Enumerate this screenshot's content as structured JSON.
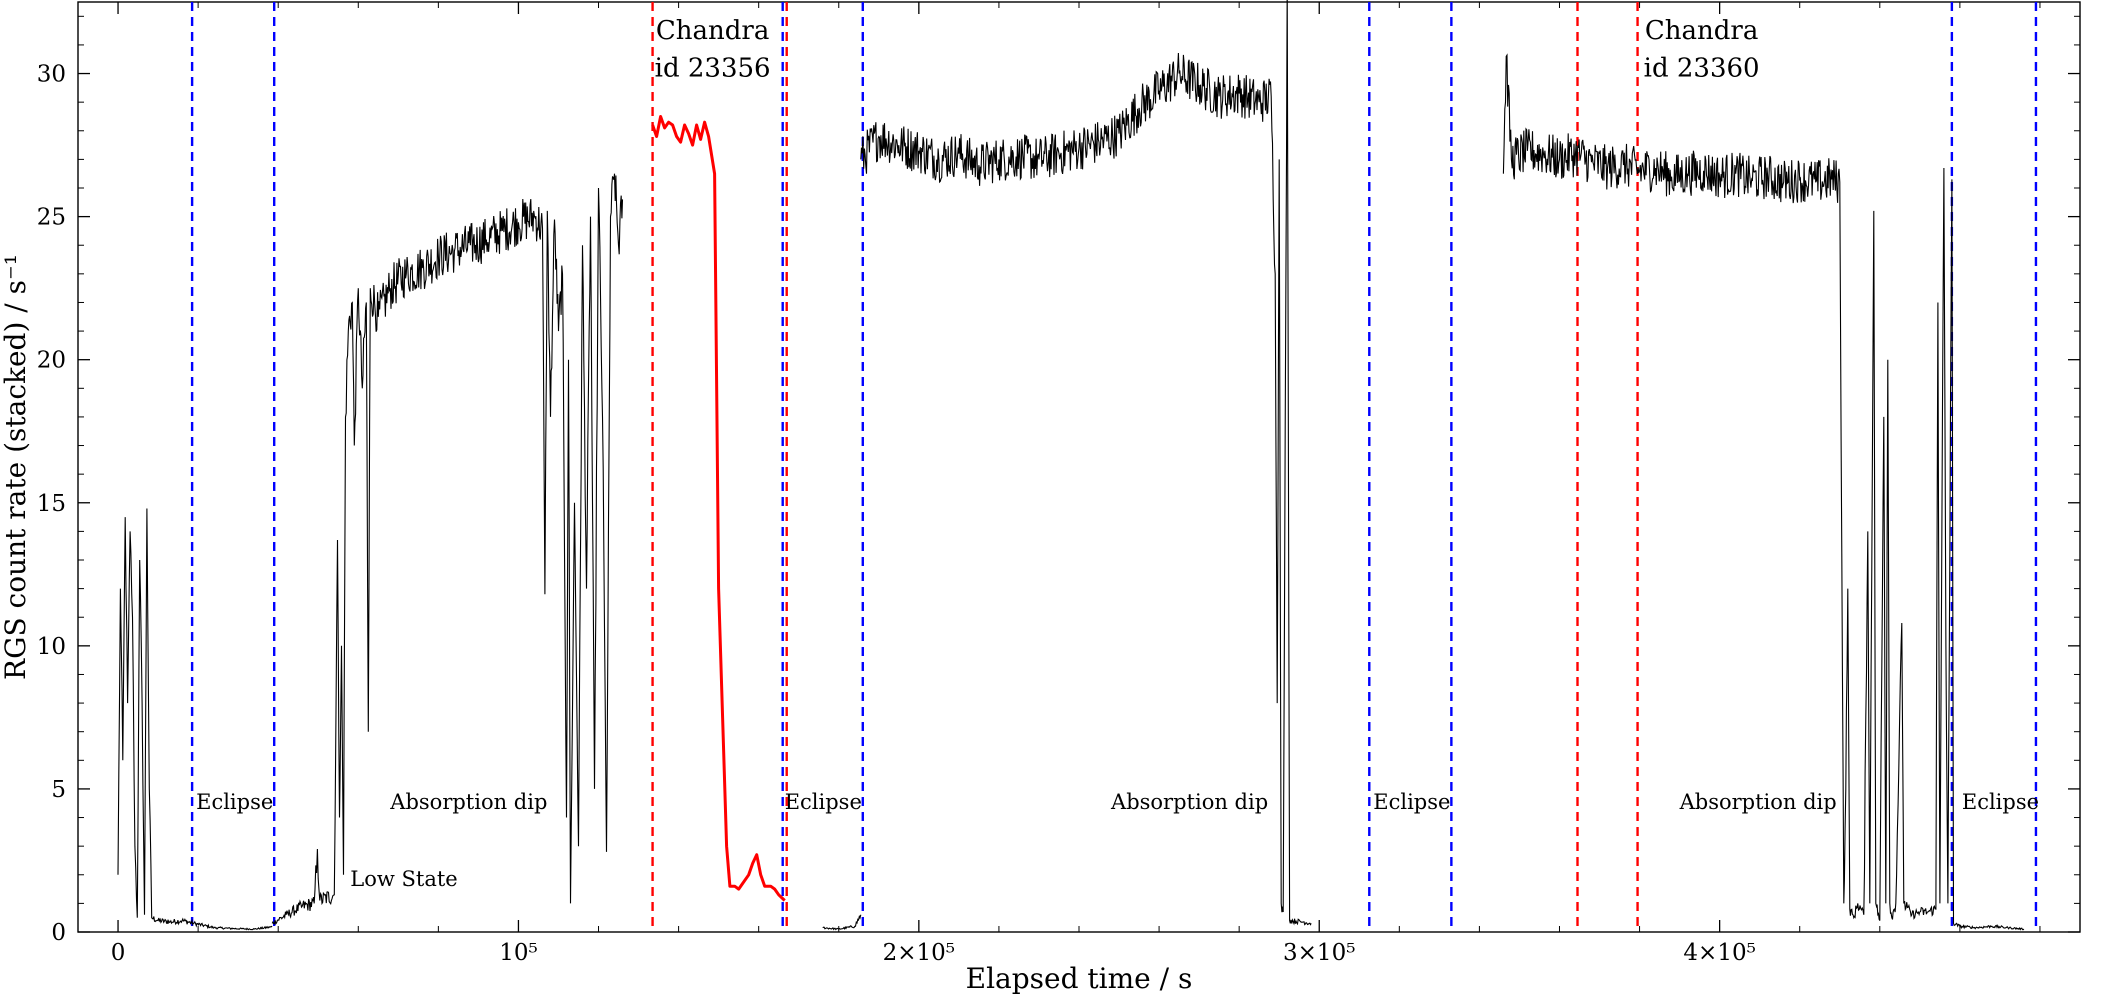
{
  "chart_data": {
    "type": "line",
    "title": "",
    "xlabel": "Elapsed time / s",
    "ylabel": "RGS count rate (stacked) / s⁻¹",
    "xlim": [
      -10000,
      490000
    ],
    "ylim": [
      0,
      32.5
    ],
    "grid": false,
    "legend": "none",
    "x_ticks": [
      {
        "value": 0,
        "label": "0"
      },
      {
        "value": 100000,
        "label": "10⁵"
      },
      {
        "value": 200000,
        "label": "2×10⁵"
      },
      {
        "value": 300000,
        "label": "3×10⁵"
      },
      {
        "value": 400000,
        "label": "4×10⁵"
      }
    ],
    "y_ticks": [
      {
        "value": 0,
        "label": "0"
      },
      {
        "value": 5,
        "label": "5"
      },
      {
        "value": 10,
        "label": "10"
      },
      {
        "value": 15,
        "label": "15"
      },
      {
        "value": 20,
        "label": "20"
      },
      {
        "value": 25,
        "label": "25"
      },
      {
        "value": 30,
        "label": "30"
      }
    ],
    "series": [
      {
        "color": "#000000",
        "segments": [
          [
            [
              0,
              2
            ],
            [
              600,
              12
            ],
            [
              1200,
              6
            ],
            [
              1800,
              14.5
            ],
            [
              2400,
              8
            ],
            [
              3000,
              14
            ],
            [
              3600,
              11
            ],
            [
              4200,
              3
            ],
            [
              4800,
              0.5
            ],
            [
              5400,
              13
            ],
            [
              6000,
              8
            ],
            [
              6600,
              0.6
            ],
            [
              7200,
              14.8
            ],
            [
              7800,
              5
            ],
            [
              8400,
              0.5
            ],
            [
              10000,
              0.4
            ],
            [
              13000,
              0.35
            ],
            [
              16000,
              0.4
            ],
            [
              19000,
              0.3
            ]
          ],
          [
            [
              19000,
              0.3
            ],
            [
              24000,
              0.15
            ],
            [
              29000,
              0.12
            ],
            [
              34000,
              0.1
            ],
            [
              38500,
              0.18
            ]
          ],
          [
            [
              38500,
              0.3
            ],
            [
              42000,
              0.6
            ],
            [
              46000,
              0.9
            ],
            [
              49000,
              1.0
            ],
            [
              49800,
              2.9
            ],
            [
              50400,
              1.1
            ],
            [
              54000,
              1.3
            ],
            [
              54800,
              13.7
            ],
            [
              55300,
              4
            ],
            [
              55800,
              10
            ],
            [
              56300,
              2
            ],
            [
              56800,
              18
            ],
            [
              57500,
              21
            ],
            [
              58500,
              22
            ],
            [
              59000,
              17
            ],
            [
              60000,
              22.5
            ],
            [
              61000,
              19
            ],
            [
              62000,
              22
            ],
            [
              62500,
              7
            ],
            [
              63000,
              22.5
            ],
            [
              65000,
              21.5
            ],
            [
              68000,
              22.5
            ],
            [
              72000,
              23
            ],
            [
              76000,
              23.2
            ],
            [
              80000,
              23.6
            ],
            [
              84000,
              23.8
            ],
            [
              88000,
              24
            ],
            [
              92000,
              24.2
            ],
            [
              96000,
              24.5
            ],
            [
              100000,
              24.8
            ],
            [
              104000,
              25
            ],
            [
              106000,
              24.6
            ],
            [
              106600,
              11.8
            ],
            [
              107200,
              25.2
            ],
            [
              108000,
              18
            ],
            [
              109000,
              24.9
            ],
            [
              110000,
              21
            ],
            [
              111000,
              23
            ],
            [
              112000,
              4
            ],
            [
              112500,
              20
            ],
            [
              113000,
              1
            ],
            [
              114000,
              15
            ],
            [
              115000,
              3
            ],
            [
              116000,
              24
            ],
            [
              117000,
              12
            ],
            [
              118000,
              25
            ],
            [
              119000,
              5
            ],
            [
              120000,
              26
            ],
            [
              121000,
              18
            ],
            [
              122000,
              2.8
            ],
            [
              123000,
              25
            ],
            [
              124000,
              26.5
            ],
            [
              125000,
              24
            ],
            [
              126000,
              25.6
            ]
          ],
          [
            [
              176000,
              0.15
            ],
            [
              180000,
              0.1
            ],
            [
              184000,
              0.2
            ],
            [
              185500,
              0.6
            ]
          ],
          [
            [
              185500,
              27
            ],
            [
              190000,
              27.8
            ],
            [
              195000,
              27.5
            ],
            [
              200000,
              27.3
            ],
            [
              205000,
              27
            ],
            [
              210000,
              27.2
            ],
            [
              215000,
              26.8
            ],
            [
              220000,
              27
            ],
            [
              225000,
              27.1
            ],
            [
              230000,
              27
            ],
            [
              235000,
              27.2
            ],
            [
              240000,
              27.4
            ],
            [
              245000,
              27.6
            ],
            [
              250000,
              27.9
            ],
            [
              255000,
              28.8
            ],
            [
              260000,
              29.4
            ],
            [
              265000,
              30
            ],
            [
              270000,
              29.6
            ],
            [
              275000,
              29.2
            ],
            [
              280000,
              29.3
            ],
            [
              285000,
              29
            ],
            [
              288000,
              29.2
            ],
            [
              289000,
              23
            ],
            [
              289500,
              8
            ],
            [
              290000,
              27
            ],
            [
              290500,
              1
            ],
            [
              291000,
              0.7
            ],
            [
              292000,
              33.2
            ],
            [
              292600,
              0.4
            ],
            [
              296000,
              0.35
            ],
            [
              298000,
              0.3
            ]
          ],
          [
            [
              346000,
              26.5
            ],
            [
              346700,
              30.6
            ],
            [
              348000,
              27
            ],
            [
              352000,
              27.3
            ],
            [
              356000,
              27.2
            ],
            [
              360000,
              27
            ],
            [
              364000,
              27.2
            ],
            [
              368000,
              26.9
            ],
            [
              372000,
              26.7
            ],
            [
              376000,
              26.8
            ],
            [
              380000,
              26.6
            ],
            [
              384000,
              26.7
            ],
            [
              388000,
              26.4
            ],
            [
              392000,
              26.5
            ],
            [
              396000,
              26.6
            ],
            [
              400000,
              26.4
            ],
            [
              404000,
              26.5
            ],
            [
              408000,
              26.3
            ],
            [
              412000,
              26.4
            ],
            [
              416000,
              26.2
            ],
            [
              420000,
              26.3
            ],
            [
              424000,
              26.2
            ],
            [
              428000,
              26.3
            ],
            [
              430000,
              26.2
            ],
            [
              431000,
              1
            ],
            [
              431500,
              5
            ],
            [
              432000,
              12
            ],
            [
              432500,
              0.8
            ],
            [
              433500,
              0.5
            ],
            [
              434500,
              1
            ],
            [
              436000,
              0.6
            ],
            [
              437000,
              14
            ],
            [
              437500,
              1
            ],
            [
              438500,
              25.2
            ],
            [
              439000,
              1
            ],
            [
              440000,
              0.4
            ],
            [
              441000,
              18
            ],
            [
              441500,
              1
            ],
            [
              442000,
              20
            ],
            [
              442500,
              1
            ],
            [
              443000,
              0.5
            ],
            [
              444000,
              1
            ],
            [
              445500,
              10.8
            ],
            [
              446000,
              1
            ],
            [
              448000,
              0.6
            ],
            [
              450000,
              0.7
            ],
            [
              452000,
              0.7
            ],
            [
              454000,
              0.8
            ],
            [
              454500,
              22
            ],
            [
              455000,
              1
            ],
            [
              456000,
              26.7
            ],
            [
              456500,
              10
            ],
            [
              457000,
              1
            ],
            [
              458000,
              26.3
            ],
            [
              458400,
              0.3
            ],
            [
              460000,
              0.2
            ],
            [
              464000,
              0.15
            ],
            [
              468000,
              0.2
            ],
            [
              472000,
              0.15
            ],
            [
              476000,
              0.1
            ]
          ]
        ]
      },
      {
        "color": "#ff0000",
        "segments": [
          [
            [
              133500,
              28.2
            ],
            [
              134500,
              27.8
            ],
            [
              135500,
              28.5
            ],
            [
              136500,
              28.1
            ],
            [
              137500,
              28.3
            ],
            [
              138500,
              28.2
            ],
            [
              139500,
              27.8
            ],
            [
              140500,
              27.6
            ],
            [
              141500,
              28.2
            ],
            [
              142500,
              27.9
            ],
            [
              143500,
              27.5
            ],
            [
              144500,
              28.2
            ],
            [
              145500,
              27.7
            ],
            [
              146500,
              28.3
            ],
            [
              147500,
              27.8
            ],
            [
              149000,
              26.5
            ],
            [
              150000,
              12
            ],
            [
              151000,
              7.5
            ],
            [
              152000,
              3
            ],
            [
              152800,
              1.6
            ],
            [
              154000,
              1.6
            ],
            [
              155000,
              1.5
            ],
            [
              156000,
              1.7
            ],
            [
              157500,
              2
            ],
            [
              158500,
              2.4
            ],
            [
              159500,
              2.7
            ],
            [
              160500,
              2
            ],
            [
              161500,
              1.6
            ],
            [
              163000,
              1.6
            ],
            [
              164000,
              1.5
            ],
            [
              165000,
              1.3
            ],
            [
              166500,
              1.1
            ]
          ]
        ]
      }
    ],
    "vertical_lines": [
      {
        "x": 18500,
        "color": "#0000ff"
      },
      {
        "x": 39000,
        "color": "#0000ff"
      },
      {
        "x": 166000,
        "color": "#0000ff"
      },
      {
        "x": 186000,
        "color": "#0000ff"
      },
      {
        "x": 312500,
        "color": "#0000ff"
      },
      {
        "x": 333000,
        "color": "#0000ff"
      },
      {
        "x": 458000,
        "color": "#0000ff"
      },
      {
        "x": 479000,
        "color": "#0000ff"
      },
      {
        "x": 133500,
        "color": "#ff0000"
      },
      {
        "x": 167000,
        "color": "#ff0000"
      },
      {
        "x": 364500,
        "color": "#ff0000"
      },
      {
        "x": 379500,
        "color": "#ff0000"
      }
    ],
    "annotations": [
      {
        "text": "Eclipse",
        "x": 19500,
        "y": 4.3,
        "style": "small"
      },
      {
        "text": "Absorption dip",
        "x": 68000,
        "y": 4.3,
        "style": "small"
      },
      {
        "text": "Low State",
        "x": 58000,
        "y": 1.6,
        "style": "small"
      },
      {
        "text": "Chandra",
        "x": 148500,
        "y": 31.2,
        "style": "big"
      },
      {
        "text": "id 23356",
        "x": 148500,
        "y": 29.9,
        "style": "big"
      },
      {
        "text": "Eclipse",
        "x": 166500,
        "y": 4.3,
        "style": "small"
      },
      {
        "text": "Absorption dip",
        "x": 248000,
        "y": 4.3,
        "style": "small"
      },
      {
        "text": "Eclipse",
        "x": 313500,
        "y": 4.3,
        "style": "small"
      },
      {
        "text": "Absorption dip",
        "x": 390000,
        "y": 4.3,
        "style": "small"
      },
      {
        "text": "Chandra",
        "x": 395500,
        "y": 31.2,
        "style": "big"
      },
      {
        "text": "id 23360",
        "x": 395500,
        "y": 29.9,
        "style": "big"
      },
      {
        "text": "Eclipse",
        "x": 460500,
        "y": 4.3,
        "style": "small"
      }
    ]
  }
}
